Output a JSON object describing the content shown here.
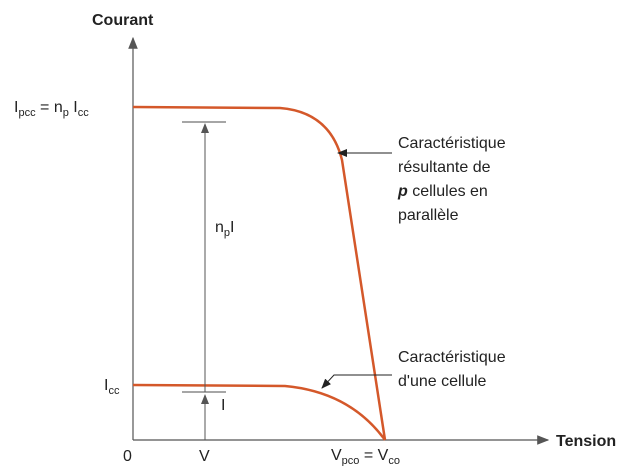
{
  "axes": {
    "y_label": "Courant",
    "x_label": "Tension",
    "origin": "0",
    "x_point": "V",
    "x_end": [
      {
        "t": "V"
      },
      {
        "s": "pco"
      },
      {
        "t": " = V"
      },
      {
        "s": "co"
      }
    ],
    "y_top": [
      {
        "t": "I"
      },
      {
        "s": "pcc"
      },
      {
        "t": " = n"
      },
      {
        "s": "p"
      },
      {
        "t": " I"
      },
      {
        "s": "cc"
      }
    ],
    "y_bottom": [
      {
        "t": "I"
      },
      {
        "s": "cc"
      }
    ]
  },
  "arrows": {
    "big": [
      {
        "t": "n"
      },
      {
        "s": "p"
      },
      {
        "t": "I"
      }
    ],
    "small": "I"
  },
  "annotations": [
    {
      "lines": [
        [
          {
            "t": "Caractéristique"
          }
        ],
        [
          {
            "t": "résultante de"
          }
        ],
        [
          {
            "b": "p"
          },
          {
            "t": " cellules en"
          }
        ],
        [
          {
            "t": "parallèle"
          }
        ]
      ]
    },
    {
      "lines": [
        [
          {
            "t": "Caractéristique"
          }
        ],
        [
          {
            "t": "d'une cellule"
          }
        ]
      ]
    }
  ]
}
